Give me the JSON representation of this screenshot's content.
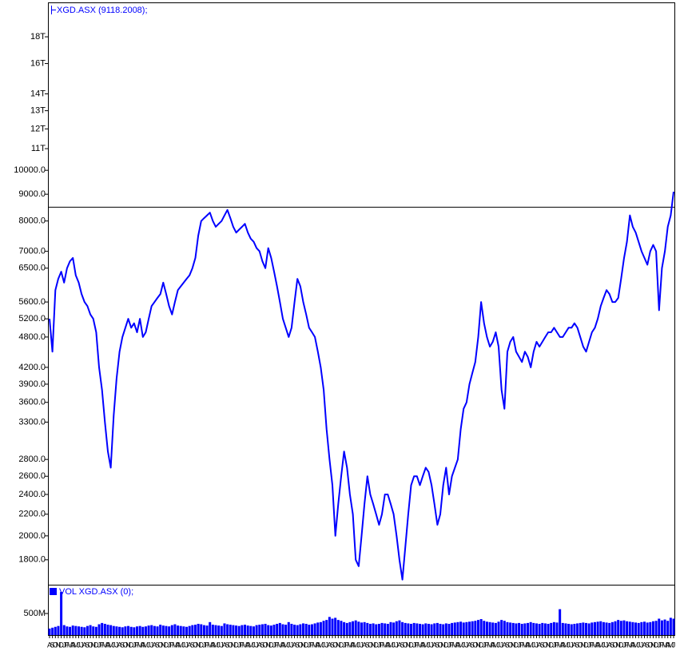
{
  "chart_data": [
    {
      "type": "line",
      "log_scale": true,
      "ylim": [
        1613,
        20870
      ],
      "yticks": [
        {
          "value": 18000,
          "label": "18T"
        },
        {
          "value": 16000,
          "label": "16T"
        },
        {
          "value": 14000,
          "label": "14T"
        },
        {
          "value": 13000,
          "label": "13T"
        },
        {
          "value": 12000,
          "label": "12T"
        },
        {
          "value": 11000,
          "label": "11T"
        },
        {
          "value": 10000,
          "label": "10000.0"
        },
        {
          "value": 9000,
          "label": "9000.0"
        },
        {
          "value": 8000,
          "label": "8000.0"
        },
        {
          "value": 7000,
          "label": "7000.0"
        },
        {
          "value": 6500,
          "label": "6500.0"
        },
        {
          "value": 5600,
          "label": "5600.0"
        },
        {
          "value": 5200,
          "label": "5200.0"
        },
        {
          "value": 4800,
          "label": "4800.0"
        },
        {
          "value": 4200,
          "label": "4200.0"
        },
        {
          "value": 3900,
          "label": "3900.0"
        },
        {
          "value": 3600,
          "label": "3600.0"
        },
        {
          "value": 3300,
          "label": "3300.0"
        },
        {
          "value": 2800,
          "label": "2800.0"
        },
        {
          "value": 2600,
          "label": "2600.0"
        },
        {
          "value": 2400,
          "label": "2400.0"
        },
        {
          "value": 2200,
          "label": "2200.0"
        },
        {
          "value": 2000,
          "label": "2000.0"
        },
        {
          "value": 1800,
          "label": "1800.0"
        }
      ],
      "hline": 8500,
      "hline_color": "#000000",
      "categories": [
        "A",
        "S",
        "O",
        "N",
        "D",
        "J",
        "F",
        "M",
        "A",
        "M",
        "J",
        "J",
        "A",
        "S",
        "O",
        "N",
        "D",
        "J",
        "F",
        "M",
        "A",
        "M",
        "J",
        "J",
        "A",
        "S",
        "O",
        "N",
        "D",
        "J",
        "F",
        "M",
        "A",
        "M",
        "J",
        "J",
        "A",
        "S",
        "O",
        "N",
        "D",
        "J",
        "F",
        "M",
        "A",
        "M",
        "J",
        "J",
        "A",
        "S",
        "O",
        "N",
        "D",
        "J",
        "F",
        "M",
        "A",
        "M",
        "J",
        "J",
        "A",
        "S",
        "O",
        "N",
        "D",
        "J",
        "F",
        "M",
        "A",
        "M",
        "J",
        "J",
        "A",
        "S",
        "O",
        "N",
        "D",
        "J",
        "F",
        "M",
        "A",
        "M",
        "J",
        "J",
        "A",
        "S",
        "O",
        "N",
        "D",
        "J",
        "F",
        "M",
        "A",
        "M",
        "J",
        "J",
        "A",
        "S",
        "O",
        "N",
        "D",
        "J",
        "F",
        "M",
        "A",
        "M",
        "J",
        "J",
        "A",
        "S",
        "O",
        "N",
        "D",
        "J",
        "F",
        "M",
        "A",
        "M",
        "J",
        "J",
        "A",
        "S",
        "O",
        "N",
        "D",
        "J",
        "F",
        "M",
        "A",
        "M",
        "J",
        "J",
        "A",
        "S",
        "O",
        "N",
        "D",
        "J",
        "F",
        "M",
        "A",
        "M",
        "J",
        "J",
        "A",
        "S",
        "O",
        "N",
        "D",
        "J",
        "F",
        "M",
        "A",
        "M",
        "J",
        "J",
        "A",
        "S",
        "O",
        "N",
        "D",
        "J",
        "F",
        "M",
        "A",
        "M",
        "J",
        "J",
        "A",
        "S",
        "O",
        "N",
        "D",
        "J",
        "F",
        "M",
        "A",
        "M",
        "J",
        "J",
        "A",
        "S",
        "O",
        "N",
        "D",
        "J",
        "F",
        "M",
        "A",
        "M",
        "J",
        "J",
        "A",
        "S",
        "O",
        "N",
        "D",
        "J",
        "F",
        "M",
        "A",
        "M",
        "J",
        "J",
        "A",
        "S",
        "O",
        "N",
        "D",
        "J",
        "F",
        "M",
        "A",
        "M",
        "J"
      ],
      "series": [
        {
          "name": "XGD.ASX (9118.2008);",
          "color": "#0000ff",
          "values": [
            5200,
            4500,
            5900,
            6200,
            6400,
            6100,
            6500,
            6700,
            6800,
            6300,
            6100,
            5800,
            5600,
            5500,
            5300,
            5200,
            4900,
            4200,
            3800,
            3300,
            2900,
            2700,
            3400,
            4000,
            4500,
            4800,
            5000,
            5200,
            5000,
            5100,
            4900,
            5200,
            4800,
            4900,
            5200,
            5500,
            5600,
            5700,
            5800,
            6100,
            5800,
            5500,
            5300,
            5600,
            5900,
            6000,
            6100,
            6200,
            6300,
            6500,
            6800,
            7500,
            8000,
            8100,
            8200,
            8300,
            8000,
            7800,
            7900,
            8000,
            8200,
            8400,
            8100,
            7800,
            7600,
            7700,
            7800,
            7900,
            7600,
            7400,
            7300,
            7100,
            7000,
            6700,
            6500,
            7100,
            6800,
            6400,
            6000,
            5600,
            5200,
            5000,
            4800,
            5000,
            5600,
            6200,
            6000,
            5600,
            5300,
            5000,
            4900,
            4800,
            4500,
            4200,
            3800,
            3200,
            2800,
            2500,
            2000,
            2300,
            2600,
            2900,
            2700,
            2400,
            2200,
            1800,
            1750,
            2000,
            2300,
            2600,
            2400,
            2300,
            2200,
            2100,
            2200,
            2400,
            2400,
            2300,
            2200,
            2000,
            1800,
            1650,
            1900,
            2200,
            2500,
            2600,
            2600,
            2500,
            2600,
            2700,
            2650,
            2500,
            2300,
            2100,
            2200,
            2500,
            2700,
            2400,
            2600,
            2700,
            2800,
            3200,
            3500,
            3600,
            3900,
            4100,
            4300,
            4800,
            5600,
            5100,
            4800,
            4600,
            4700,
            4900,
            4600,
            3800,
            3500,
            4500,
            4700,
            4800,
            4500,
            4400,
            4300,
            4500,
            4400,
            4200,
            4500,
            4700,
            4600,
            4700,
            4800,
            4900,
            4900,
            5000,
            4900,
            4800,
            4800,
            4900,
            5000,
            5000,
            5100,
            5000,
            4800,
            4600,
            4500,
            4700,
            4900,
            5000,
            5200,
            5500,
            5700,
            5900,
            5800,
            5600,
            5600,
            5700,
            6200,
            6800,
            7300,
            8200,
            7800,
            7600,
            7300,
            7000,
            6800,
            6600,
            7000,
            7200,
            7000,
            5400,
            6500,
            7000,
            7800,
            8200,
            9100
          ]
        }
      ]
    },
    {
      "type": "bar",
      "ylim": [
        0,
        1150000000
      ],
      "yticks": [
        {
          "value": 500000000,
          "label": "500M"
        }
      ],
      "series": [
        {
          "name": "VOL XGD.ASX (0);",
          "color": "#0000ff",
          "values": [
            150000000,
            170000000,
            190000000,
            210000000,
            1000000000,
            230000000,
            200000000,
            190000000,
            220000000,
            210000000,
            200000000,
            190000000,
            180000000,
            210000000,
            230000000,
            200000000,
            190000000,
            250000000,
            280000000,
            260000000,
            240000000,
            230000000,
            210000000,
            200000000,
            190000000,
            180000000,
            200000000,
            210000000,
            190000000,
            180000000,
            200000000,
            210000000,
            190000000,
            200000000,
            220000000,
            230000000,
            210000000,
            200000000,
            240000000,
            220000000,
            210000000,
            200000000,
            230000000,
            250000000,
            220000000,
            210000000,
            200000000,
            190000000,
            210000000,
            230000000,
            240000000,
            260000000,
            250000000,
            230000000,
            220000000,
            300000000,
            240000000,
            230000000,
            220000000,
            210000000,
            270000000,
            250000000,
            240000000,
            230000000,
            220000000,
            210000000,
            230000000,
            240000000,
            220000000,
            210000000,
            200000000,
            230000000,
            240000000,
            250000000,
            260000000,
            230000000,
            220000000,
            240000000,
            260000000,
            280000000,
            250000000,
            240000000,
            300000000,
            260000000,
            240000000,
            230000000,
            250000000,
            270000000,
            260000000,
            240000000,
            250000000,
            270000000,
            290000000,
            300000000,
            330000000,
            350000000,
            420000000,
            380000000,
            400000000,
            350000000,
            330000000,
            300000000,
            280000000,
            300000000,
            320000000,
            340000000,
            310000000,
            290000000,
            300000000,
            280000000,
            260000000,
            270000000,
            250000000,
            260000000,
            280000000,
            270000000,
            260000000,
            300000000,
            290000000,
            320000000,
            340000000,
            300000000,
            280000000,
            270000000,
            260000000,
            280000000,
            270000000,
            260000000,
            250000000,
            270000000,
            260000000,
            250000000,
            270000000,
            280000000,
            260000000,
            250000000,
            270000000,
            260000000,
            280000000,
            290000000,
            300000000,
            310000000,
            290000000,
            300000000,
            310000000,
            320000000,
            330000000,
            350000000,
            370000000,
            330000000,
            310000000,
            300000000,
            290000000,
            280000000,
            310000000,
            350000000,
            330000000,
            300000000,
            290000000,
            280000000,
            270000000,
            280000000,
            260000000,
            270000000,
            280000000,
            300000000,
            280000000,
            270000000,
            260000000,
            280000000,
            270000000,
            260000000,
            280000000,
            300000000,
            290000000,
            600000000,
            280000000,
            270000000,
            260000000,
            250000000,
            260000000,
            270000000,
            280000000,
            290000000,
            280000000,
            270000000,
            290000000,
            300000000,
            310000000,
            320000000,
            300000000,
            290000000,
            280000000,
            300000000,
            320000000,
            350000000,
            330000000,
            340000000,
            320000000,
            310000000,
            300000000,
            290000000,
            280000000,
            300000000,
            310000000,
            290000000,
            300000000,
            320000000,
            330000000,
            380000000,
            340000000,
            360000000,
            330000000,
            400000000,
            380000000
          ]
        }
      ]
    }
  ]
}
